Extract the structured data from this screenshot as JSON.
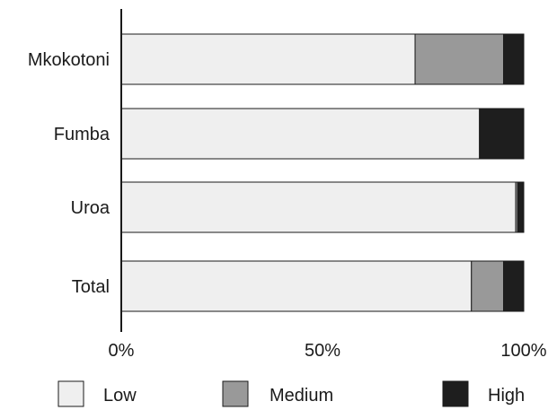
{
  "chart_data": {
    "type": "bar",
    "orientation": "horizontal",
    "stacked": true,
    "normalized_percent": true,
    "categories": [
      "Mkokotoni",
      "Fumba",
      "Uroa",
      "Total"
    ],
    "series": [
      {
        "name": "Low",
        "color": "#efefef",
        "values": [
          73,
          89,
          98,
          87
        ]
      },
      {
        "name": "Medium",
        "color": "#999999",
        "values": [
          22,
          0,
          0.5,
          8
        ]
      },
      {
        "name": "High",
        "color": "#1e1e1e",
        "values": [
          5,
          11,
          1.5,
          5
        ]
      }
    ],
    "xlim": [
      0,
      100
    ],
    "xticks": [
      {
        "value": 0,
        "label": "0%"
      },
      {
        "value": 50,
        "label": "50%"
      },
      {
        "value": 100,
        "label": "100%"
      }
    ],
    "grid": false,
    "legend_position": "bottom"
  }
}
